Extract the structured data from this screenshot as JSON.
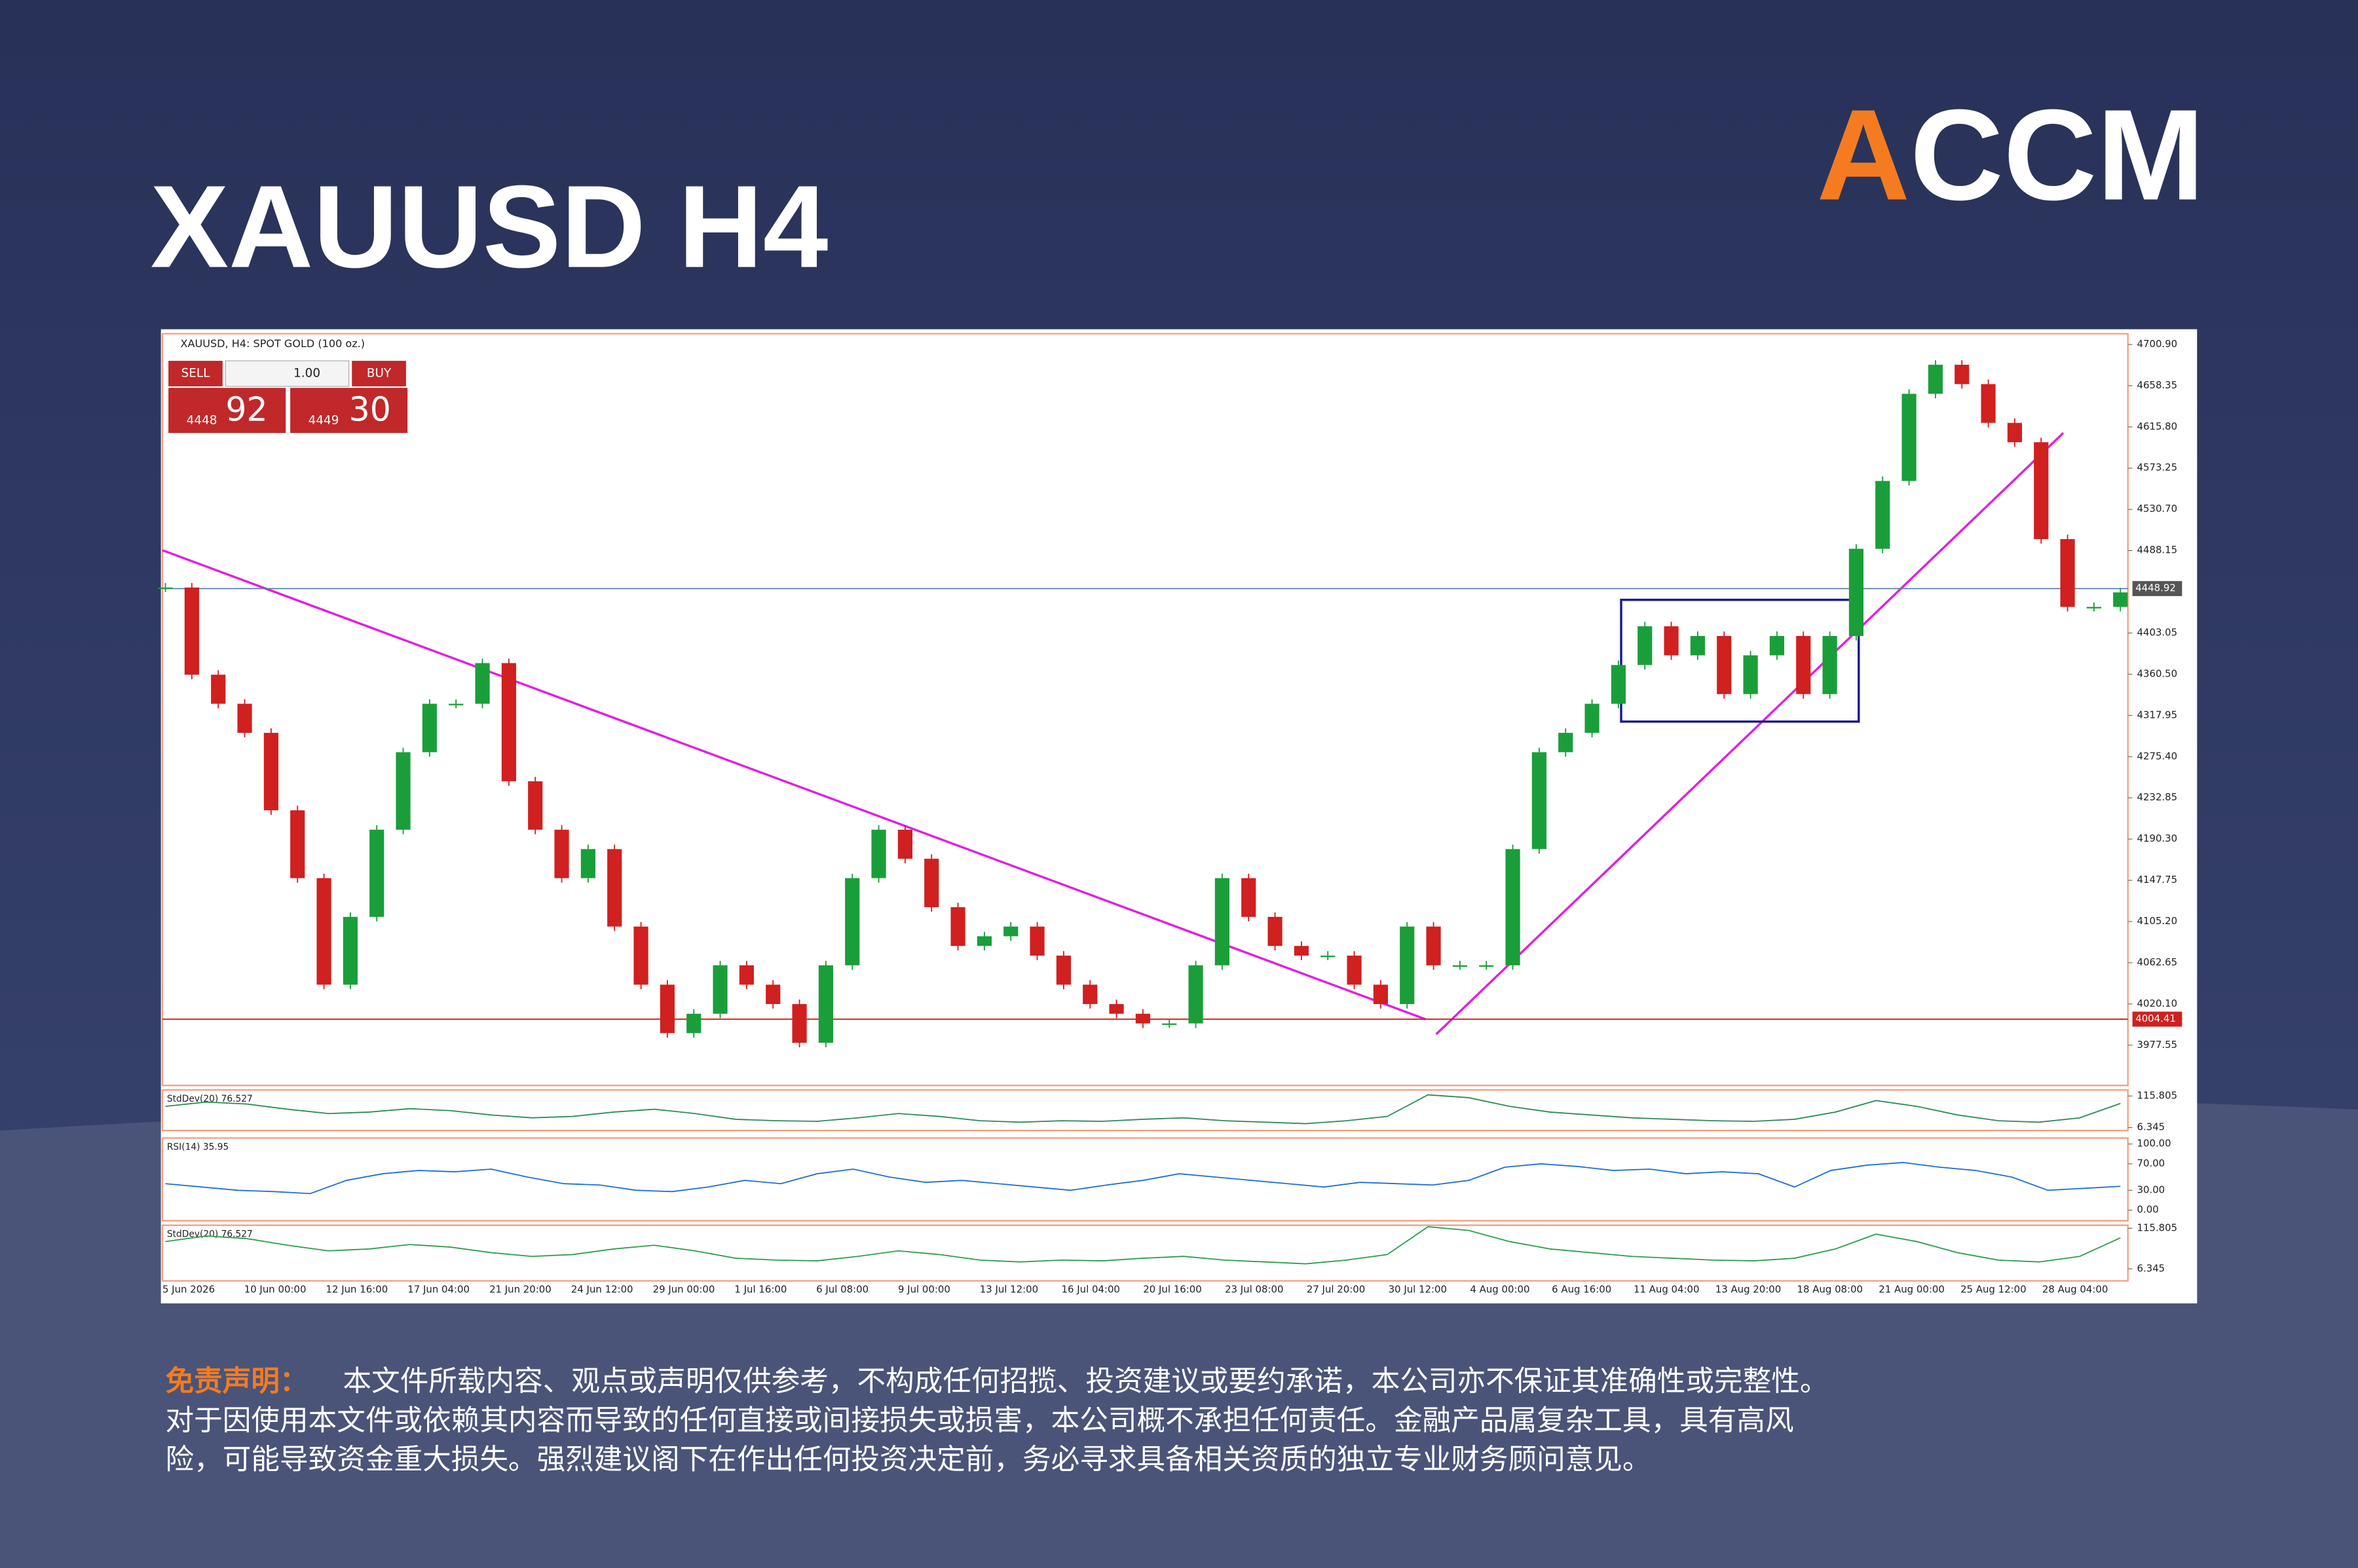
{
  "header": {
    "title": "XAUUSD H4",
    "logo_a": "A",
    "logo_rest": "CCM"
  },
  "chart_data": {
    "type": "candlestick",
    "symbol": "XAUUSD, H4: SPOT GOLD (100 oz.)",
    "trade_panel": {
      "sell": "SELL",
      "buy": "BUY",
      "volume": "1.00",
      "bid_big": "4448",
      "bid_small": "92",
      "ask_big": "4449",
      "ask_small": "30"
    },
    "close": [
      4450,
      4360,
      4330,
      4300,
      4220,
      4150,
      4040,
      4110,
      4200,
      4280,
      4330,
      4330,
      4372,
      4250,
      4200,
      4150,
      4180,
      4100,
      4040,
      3990,
      4010,
      4060,
      4040,
      4020,
      3980,
      4060,
      4150,
      4200,
      4170,
      4120,
      4080,
      4090,
      4100,
      4070,
      4040,
      4020,
      4010,
      4000,
      4000,
      4060,
      4150,
      4110,
      4080,
      4070,
      4070,
      4040,
      4020,
      4100,
      4060,
      4060,
      4060,
      4180,
      4280,
      4300,
      4330,
      4370,
      4410,
      4380,
      4400,
      4340,
      4380,
      4400,
      4340,
      4400,
      4490,
      4560,
      4650,
      4680,
      4660,
      4620,
      4600,
      4500,
      4430,
      4430,
      4445
    ],
    "ylim": [
      3936,
      4712
    ],
    "yticks": [
      {
        "value": 4700.9,
        "label": "4700.90"
      },
      4658.35,
      {
        "value": 4615.8,
        "label": "4615.80"
      },
      4573.25,
      {
        "value": 4530.7,
        "label": "4530.70"
      },
      4488.15,
      4403.05,
      {
        "value": 4360.5,
        "label": "4360.50"
      },
      4317.95,
      {
        "value": 4275.4,
        "label": "4275.40"
      },
      4232.85,
      {
        "value": 4190.3,
        "label": "4190.30"
      },
      4147.75,
      {
        "value": 4105.2,
        "label": "4105.20"
      },
      4062.65,
      {
        "value": 4020.1,
        "label": "4020.10"
      },
      3977.55
    ],
    "current_price": 4448.92,
    "support": 4004.41,
    "x_labels": [
      "5 Jun 2026",
      "10 Jun 00:00",
      "12 Jun 16:00",
      "17 Jun 04:00",
      "21 Jun 20:00",
      "24 Jun 12:00",
      "29 Jun 00:00",
      "1 Jul 16:00",
      "6 Jul 08:00",
      "9 Jul 00:00",
      "13 Jul 12:00",
      "16 Jul 04:00",
      "20 Jul 16:00",
      "23 Jul 08:00",
      "27 Jul 20:00",
      "30 Jul 12:00",
      "4 Aug 00:00",
      "6 Aug 16:00",
      "11 Aug 04:00",
      "13 Aug 20:00",
      "18 Aug 08:00",
      "21 Aug 00:00",
      "25 Aug 12:00",
      "28 Aug 04:00"
    ],
    "indicators": [
      {
        "label": "StdDev(20) 76.527",
        "color": "#2e8b57",
        "ylim": [
          -4,
          137
        ],
        "yticks": [
          115.805,
          6.345
        ],
        "values": [
          80,
          95,
          88,
          70,
          55,
          60,
          72,
          65,
          50,
          40,
          45,
          60,
          70,
          55,
          35,
          30,
          28,
          40,
          55,
          45,
          30,
          25,
          30,
          28,
          35,
          40,
          30,
          25,
          20,
          30,
          45,
          120,
          110,
          80,
          60,
          50,
          40,
          35,
          30,
          28,
          35,
          60,
          100,
          80,
          50,
          30,
          25,
          40,
          90
        ]
      },
      {
        "label": "RSI(14) 35.95",
        "color": "#1e6fd6",
        "ylim": [
          -16,
          109
        ],
        "yticks": [
          {
            "value": 100,
            "label": "100.00"
          },
          {
            "value": 70,
            "label": "70.00"
          },
          {
            "value": 30,
            "label": "30.00"
          },
          {
            "value": 0,
            "label": "0.00"
          }
        ],
        "values": [
          40,
          35,
          30,
          28,
          25,
          45,
          55,
          60,
          58,
          62,
          50,
          40,
          38,
          30,
          28,
          35,
          45,
          40,
          55,
          62,
          50,
          42,
          45,
          40,
          35,
          30,
          38,
          45,
          55,
          50,
          45,
          40,
          35,
          42,
          40,
          38,
          45,
          65,
          70,
          66,
          60,
          62,
          55,
          58,
          55,
          35,
          60,
          68,
          72,
          65,
          60,
          50,
          30,
          33,
          36
        ]
      },
      {
        "label": "StdDev(20) 76.527",
        "color": "#2e9e4f",
        "ylim": [
          -26,
          124
        ],
        "yticks": [
          115.805,
          6.345
        ],
        "values": [
          80,
          95,
          88,
          70,
          55,
          60,
          72,
          65,
          50,
          40,
          45,
          60,
          70,
          55,
          35,
          30,
          28,
          40,
          55,
          45,
          30,
          25,
          30,
          28,
          35,
          40,
          30,
          25,
          20,
          30,
          45,
          120,
          110,
          80,
          60,
          50,
          40,
          35,
          30,
          28,
          35,
          60,
          100,
          80,
          50,
          30,
          25,
          40,
          90
        ]
      }
    ]
  },
  "disclaimer": {
    "label": "免责声明：",
    "lines": [
      "本文件所载内容、观点或声明仅供参考，不构成任何招揽、投资建议或要约承诺，本公司亦不保证其准确性或完整性。",
      "对于因使用本文件或依赖其内容而导致的任何直接或间接损失或损害，本公司概不承担任何责任。金融产品属复杂工具，具有高风",
      "险，可能导致资金重大损失。强烈建议阁下在作出任何投资决定前，务必寻求具备相关资质的独立专业财务顾问意见。"
    ]
  }
}
